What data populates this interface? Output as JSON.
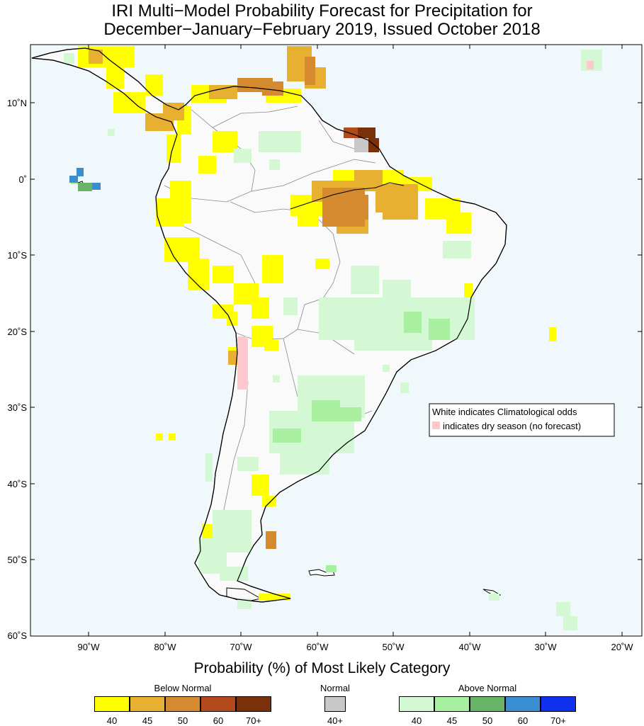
{
  "title": {
    "line1": "IRI Multi−Model Probability Forecast for Precipitation for",
    "line2": "December−January−February 2019, Issued October 2018"
  },
  "map": {
    "region": "South America",
    "lat_labels": [
      "10˚N",
      "0˚",
      "10˚S",
      "20˚S",
      "30˚S",
      "40˚S",
      "50˚S",
      "60˚S"
    ],
    "lon_labels": [
      "90˚W",
      "80˚W",
      "70˚W",
      "60˚W",
      "50˚W",
      "40˚W",
      "30˚W",
      "20˚W"
    ],
    "colors": {
      "ocean": "#f0f8fc",
      "land": "#fafafa",
      "dry_season": "#ffc8cd"
    }
  },
  "legend_box": {
    "line1": "White indicates Climatological odds",
    "line2": "indicates dry season (no forecast)"
  },
  "probability_title": "Probability (%) of Most Likely Category",
  "categories": {
    "below": {
      "title": "Below Normal",
      "levels": [
        "40",
        "45",
        "50",
        "60",
        "70+"
      ],
      "colors": [
        "#ffff00",
        "#e8b030",
        "#d68a30",
        "#b24a1c",
        "#7a3008"
      ]
    },
    "normal": {
      "title": "Normal",
      "levels": [
        "40+"
      ],
      "colors": [
        "#c8c8c8"
      ]
    },
    "above": {
      "title": "Above Normal",
      "levels": [
        "40",
        "45",
        "50",
        "60",
        "70+"
      ],
      "colors": [
        "#d4f8d4",
        "#a8f0a0",
        "#68b468",
        "#3a8ed0",
        "#1030f0"
      ]
    }
  }
}
